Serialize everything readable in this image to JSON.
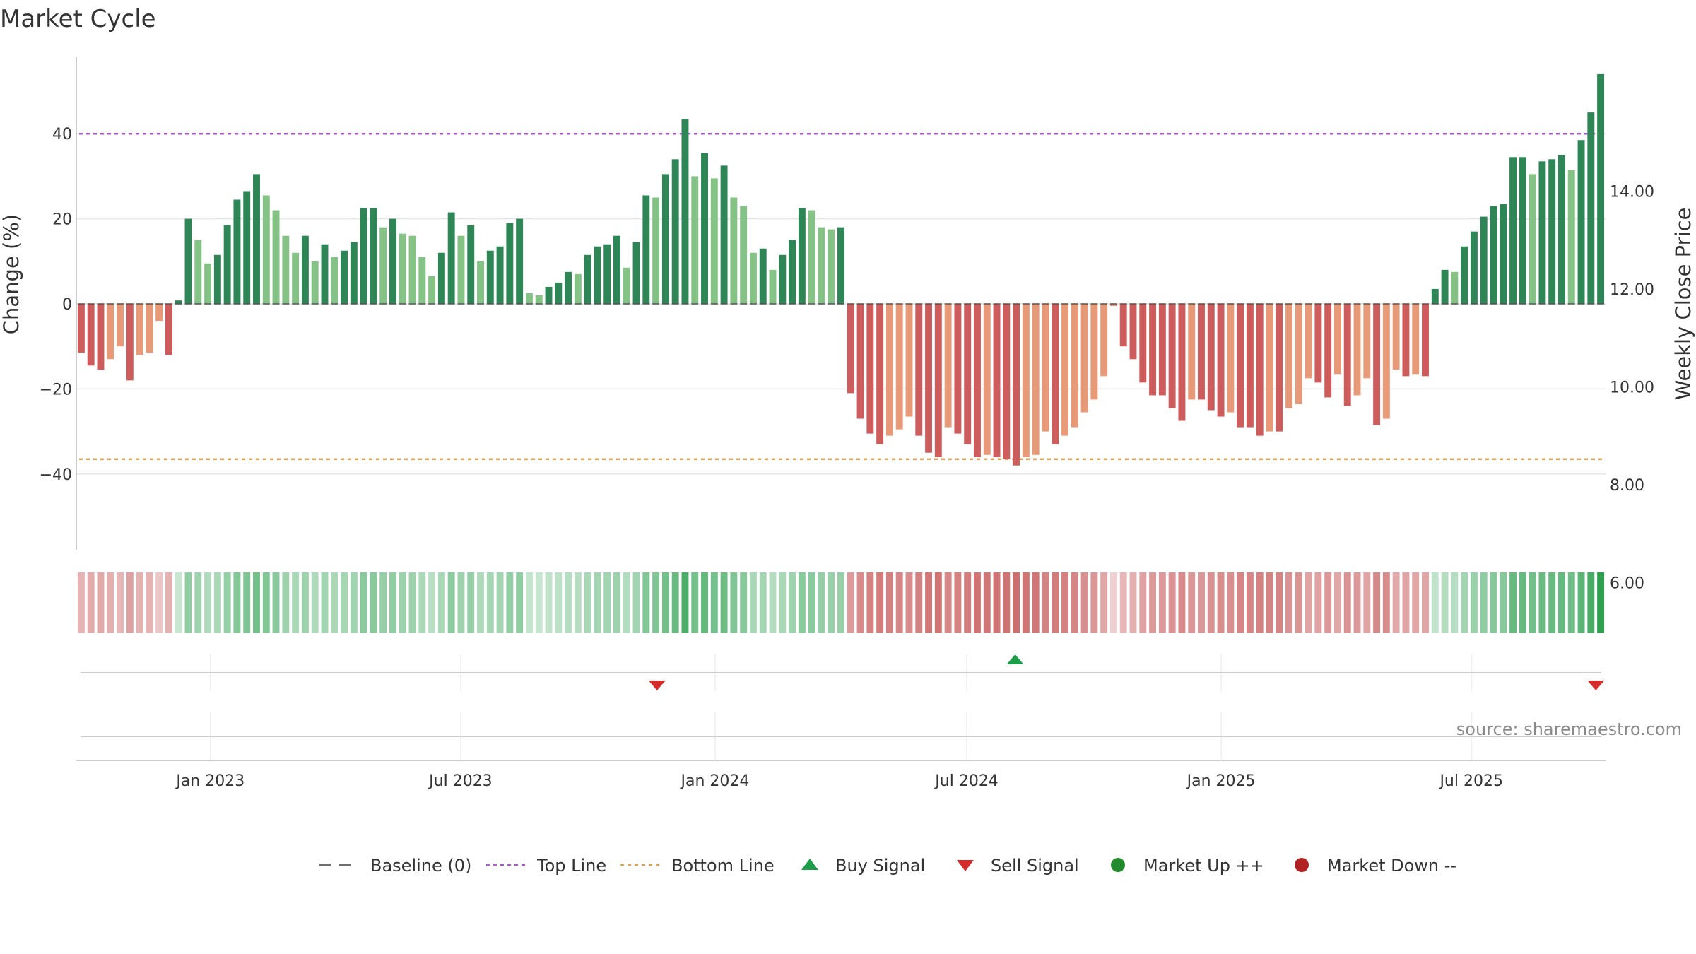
{
  "chart_data": {
    "type": "bar",
    "title": "Market Cycle",
    "ylabel": "Change (%)",
    "y2label": "Weekly Close Price",
    "ylim": [
      -58,
      58
    ],
    "y_ticks": [
      -40,
      -20,
      0,
      20,
      40
    ],
    "y2lim": [
      5.5,
      15.5
    ],
    "y2_ticks": [
      "6.00",
      "8.00",
      "10.00",
      "12.00",
      "14.00"
    ],
    "top_line": 40,
    "bottom_line": -36.5,
    "x_start": "2022-09-26",
    "x_end": "2025-10-06",
    "x_ticks": [
      {
        "label": "Jan 2023",
        "date": "2023-01-01"
      },
      {
        "label": "Jul 2023",
        "date": "2023-07-01"
      },
      {
        "label": "Jan 2024",
        "date": "2024-01-01"
      },
      {
        "label": "Jul 2024",
        "date": "2024-07-01"
      },
      {
        "label": "Jan 2025",
        "date": "2025-01-01"
      },
      {
        "label": "Jul 2025",
        "date": "2025-07-01"
      }
    ],
    "legend_position": "bottom",
    "grid": true,
    "values": [
      -11.5,
      -14.5,
      -15.5,
      -13,
      -10,
      -18,
      -12,
      -11.5,
      -4,
      -12,
      0.8,
      20,
      15,
      9.5,
      11.5,
      18.5,
      24.5,
      26.5,
      30.5,
      25.5,
      22,
      16,
      12,
      16,
      10,
      14,
      11,
      12.5,
      14.5,
      22.5,
      22.5,
      18,
      20,
      16.5,
      16,
      11,
      6.5,
      12,
      21.5,
      16,
      18.5,
      10,
      12.5,
      13.5,
      19,
      20,
      2.5,
      2,
      4,
      5,
      7.5,
      7,
      11.5,
      13.5,
      14,
      16,
      8.5,
      14.5,
      25.5,
      25,
      30.5,
      34,
      43.5,
      30,
      35.5,
      29.5,
      32.5,
      25,
      23,
      12,
      13,
      8,
      11.5,
      15,
      22.5,
      22,
      18,
      17.5,
      18,
      -21,
      -27,
      -30.5,
      -33,
      -31,
      -29.5,
      -26.5,
      -31,
      -35,
      -36,
      -29,
      -30.5,
      -33,
      -36,
      -35.5,
      -36,
      -36.5,
      -38,
      -36,
      -35.5,
      -30,
      -33,
      -31,
      -29,
      -25.5,
      -22.5,
      -17,
      -0.5,
      -10,
      -13,
      -18.5,
      -21.5,
      -21.5,
      -24.5,
      -27.5,
      -22.5,
      -22.5,
      -25,
      -26.5,
      -25.5,
      -29,
      -29,
      -31,
      -30,
      -30,
      -24.5,
      -23.5,
      -17.5,
      -18.5,
      -22,
      -16.5,
      -24,
      -21.5,
      -17.5,
      -28.5,
      -27,
      -15.5,
      -17,
      -16.5,
      -17,
      3.5,
      8,
      7.5,
      13.5,
      17,
      20.5,
      23,
      23.5,
      34.5,
      34.5,
      30.5,
      33.5,
      34,
      35,
      31.5,
      38.5,
      45,
      54
    ],
    "sell_signals": [
      "2023-11-20",
      "2025-09-29"
    ],
    "buy_signals": [
      "2024-08-05"
    ]
  },
  "legend": [
    {
      "label": "Baseline (0)",
      "symbol": "dashed-line",
      "color": "#6e6e6e"
    },
    {
      "label": "Top Line",
      "symbol": "dotted-line",
      "color": "#a855c9"
    },
    {
      "label": "Bottom Line",
      "symbol": "dotted-line",
      "color": "#e0a050"
    },
    {
      "label": "Buy Signal",
      "symbol": "triangle-up",
      "color": "#1e9e4a"
    },
    {
      "label": "Sell Signal",
      "symbol": "triangle-down",
      "color": "#d62b2b"
    },
    {
      "label": "Market Up ++",
      "symbol": "circle",
      "color": "#238b2e"
    },
    {
      "label": "Market Down --",
      "symbol": "circle",
      "color": "#b22222"
    }
  ],
  "source": "source: sharemaestro.com",
  "colors": {
    "up_strong": "#2e8555",
    "up_light": "#85c285",
    "down_strong": "#cd5c5c",
    "down_light": "#e89a78",
    "top_line": "#a855c9",
    "bottom_line": "#e0a050",
    "grid": "#e6e6e6"
  }
}
